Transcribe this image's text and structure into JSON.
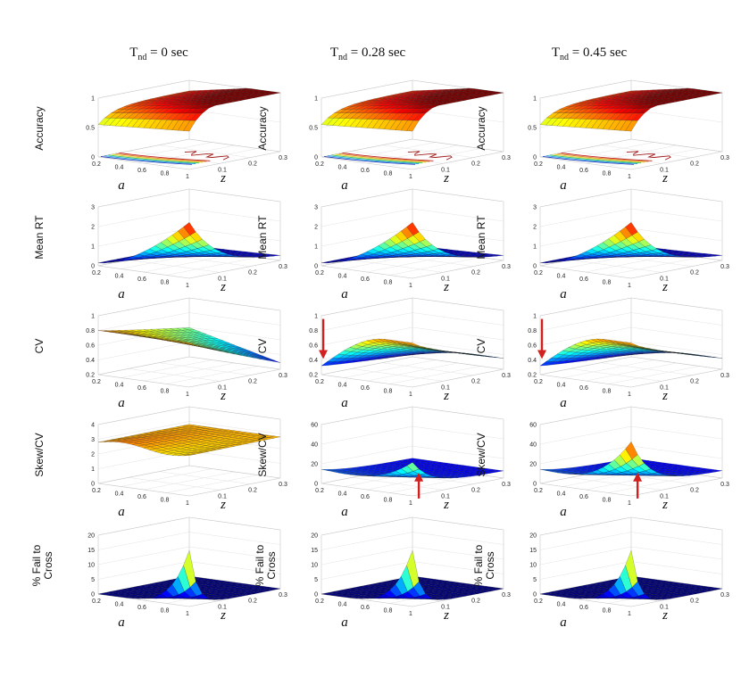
{
  "chart_data": {
    "type": "surface3d-grid",
    "columns": [
      {
        "title_main": "T",
        "title_sub": "nd",
        "title_rest": " = 0 sec"
      },
      {
        "title_main": "T",
        "title_sub": "nd",
        "title_rest": " = 0.28 sec"
      },
      {
        "title_main": "T",
        "title_sub": "nd",
        "title_rest": " = 0.45 sec"
      }
    ],
    "x_axis": {
      "name": "a",
      "ticks": [
        "0.2",
        "0.4",
        "0.6",
        "0.8",
        "1"
      ]
    },
    "y_axis": {
      "name": "z",
      "ticks": [
        "0.1",
        "0.2",
        "0.3"
      ]
    },
    "rows": [
      {
        "ylabel": "Accuracy",
        "zticks": [
          "0",
          "0.5",
          "1"
        ],
        "zlim": [
          0,
          1
        ],
        "contour_floor": true,
        "peak_by_column": [
          1,
          1,
          1
        ],
        "arrows_by_column": [
          "none",
          "none",
          "none"
        ]
      },
      {
        "ylabel": "Mean RT",
        "zticks": [
          "0",
          "1",
          "2",
          "3"
        ],
        "zlim": [
          0,
          3
        ],
        "contour_floor": false,
        "peak_by_column": [
          2.6,
          2.7,
          2.8
        ],
        "arrows_by_column": [
          "none",
          "none",
          "none"
        ]
      },
      {
        "ylabel": "CV",
        "zticks": [
          "0.2",
          "0.4",
          "0.6",
          "0.8",
          "1"
        ],
        "zlim": [
          0.2,
          1
        ],
        "contour_floor": false,
        "peak_by_column": [
          0.8,
          0.75,
          0.65
        ],
        "arrows_by_column": [
          "none",
          "down",
          "down"
        ]
      },
      {
        "ylabel": "Skew/CV",
        "zticks_by_column": [
          [
            "0",
            "1",
            "2",
            "3",
            "4"
          ],
          [
            "0",
            "20",
            "40",
            "60"
          ],
          [
            "0",
            "20",
            "40",
            "60"
          ]
        ],
        "zlim_by_column": [
          [
            0,
            4
          ],
          [
            0,
            60
          ],
          [
            0,
            60
          ]
        ],
        "contour_floor": false,
        "peak_by_column": [
          3,
          25,
          45
        ],
        "arrows_by_column": [
          "none",
          "up",
          "up"
        ]
      },
      {
        "ylabel_lines": [
          "% Fail to",
          "Cross"
        ],
        "zticks": [
          "0",
          "5",
          "10",
          "15",
          "20"
        ],
        "zlim": [
          0,
          20
        ],
        "contour_floor": false,
        "peak_by_column": [
          19,
          21,
          22
        ],
        "arrows_by_column": [
          "none",
          "none",
          "none"
        ]
      }
    ]
  }
}
